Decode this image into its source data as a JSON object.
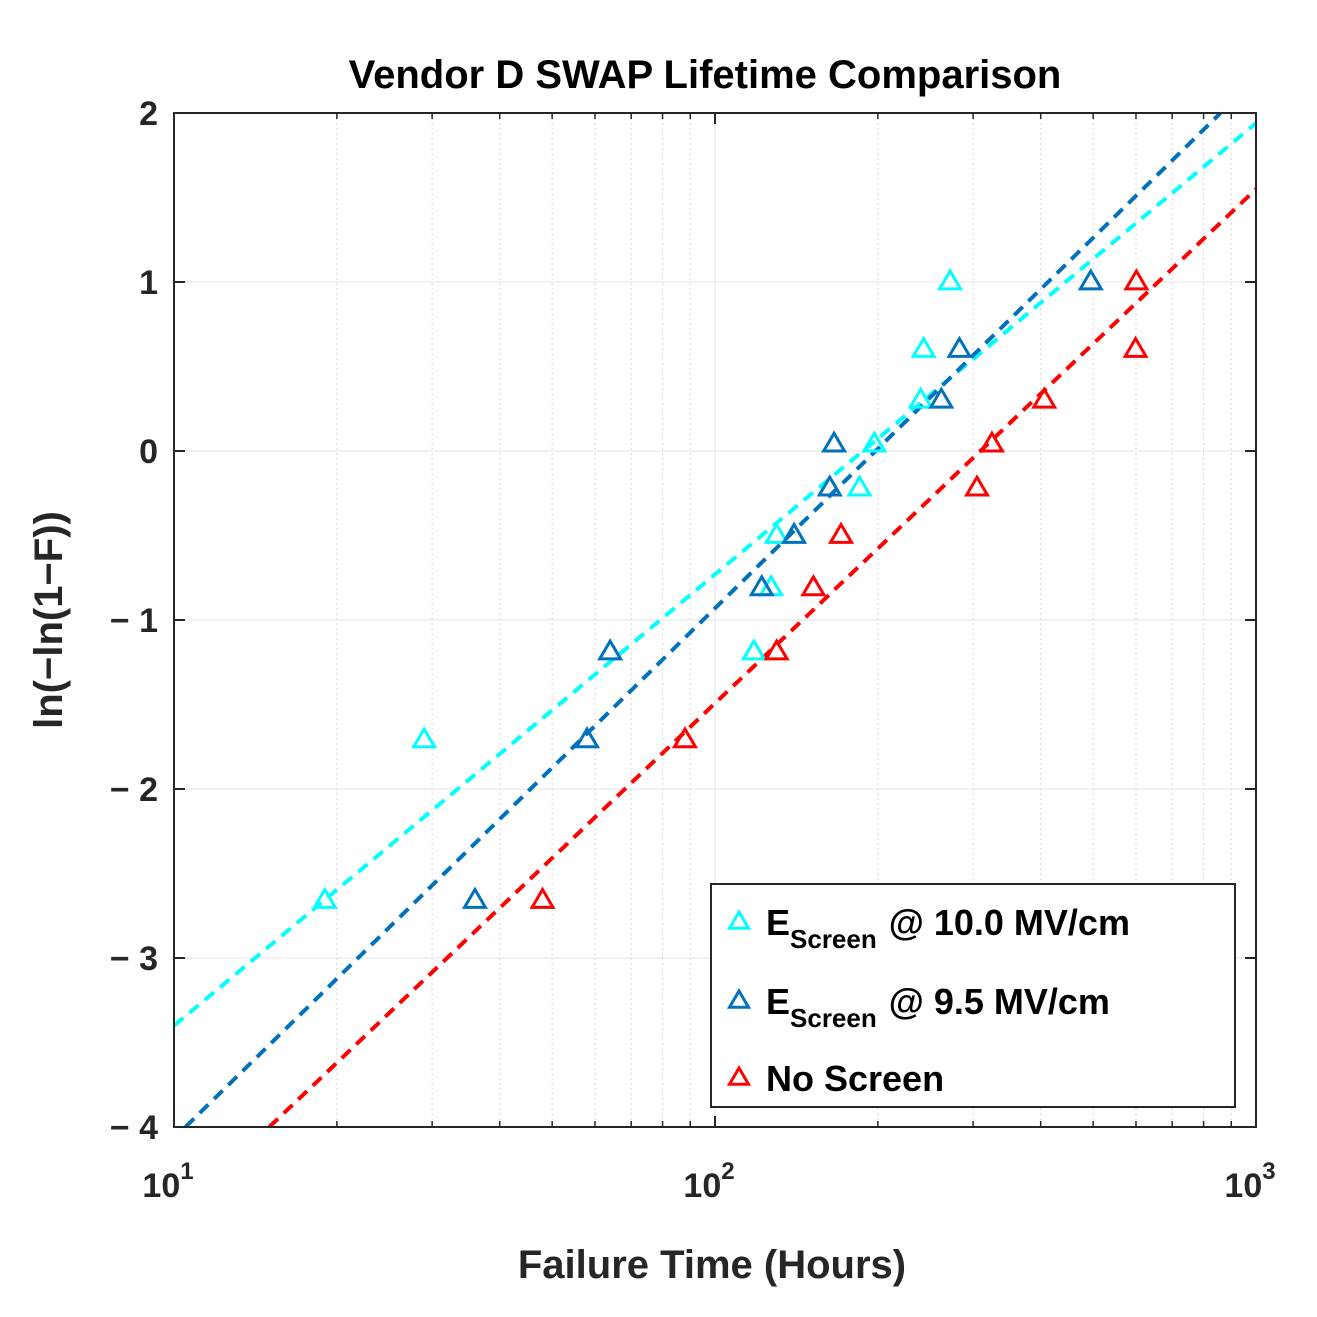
{
  "chart_data": {
    "type": "scatter",
    "title": "Vendor D SWAP Lifetime Comparison",
    "xlabel": "Failure Time (Hours)",
    "ylabel": "ln(−ln(1−F))",
    "xscale": "log",
    "xlim": [
      10,
      1000
    ],
    "ylim": [
      -4,
      2
    ],
    "x_tick_labels": [
      {
        "base": "10",
        "exp": "1"
      },
      {
        "base": "10",
        "exp": "2"
      },
      {
        "base": "10",
        "exp": "3"
      }
    ],
    "y_ticks": [
      2,
      1,
      0,
      -1,
      -2,
      -3,
      -4
    ],
    "y_tick_labels": [
      "2",
      "1",
      "0",
      "− 1",
      "− 2",
      "− 3",
      "− 4"
    ],
    "grid": true,
    "legend_position": "bottom-right",
    "series": [
      {
        "name": "E_Screen @ 10.0 MV/cm",
        "legend_main": "E",
        "legend_sub": "Screen",
        "legend_rest": "@ 10.0 MV/cm",
        "color": "#00ffff",
        "marker": "triangle",
        "x": [
          19,
          29,
          118,
          127,
          130,
          185,
          197,
          240,
          243,
          272
        ],
        "y": [
          -2.66,
          -1.71,
          -1.19,
          -0.81,
          -0.5,
          -0.22,
          0.04,
          0.3,
          0.6,
          1.0
        ],
        "fit": {
          "x1": 10,
          "y1": -3.4,
          "x2": 1000,
          "y2": 1.94
        }
      },
      {
        "name": "E_Screen @ 9.5 MV/cm",
        "legend_main": "E",
        "legend_sub": "Screen",
        "legend_rest": "@ 9.5 MV/cm",
        "color": "#0072bd",
        "marker": "triangle",
        "x": [
          36,
          58,
          64,
          122,
          140,
          163,
          166,
          262,
          283,
          495
        ],
        "y": [
          -2.66,
          -1.71,
          -1.19,
          -0.81,
          -0.5,
          -0.22,
          0.04,
          0.3,
          0.6,
          1.0
        ],
        "fit": {
          "x1": 10.5,
          "y1": -4.0,
          "x2": 860,
          "y2": 2.0
        }
      },
      {
        "name": "No Screen",
        "legend_main": "No Screen",
        "legend_sub": "",
        "legend_rest": "",
        "color": "#ff0000",
        "marker": "triangle",
        "x": [
          48,
          88,
          130,
          152,
          171,
          305,
          325,
          406,
          599,
          601
        ],
        "y": [
          -2.66,
          -1.71,
          -1.19,
          -0.81,
          -0.5,
          -0.22,
          0.04,
          0.3,
          0.6,
          1.0
        ],
        "fit": {
          "x1": 15,
          "y1": -4.0,
          "x2": 1000,
          "y2": 1.55
        }
      }
    ]
  }
}
